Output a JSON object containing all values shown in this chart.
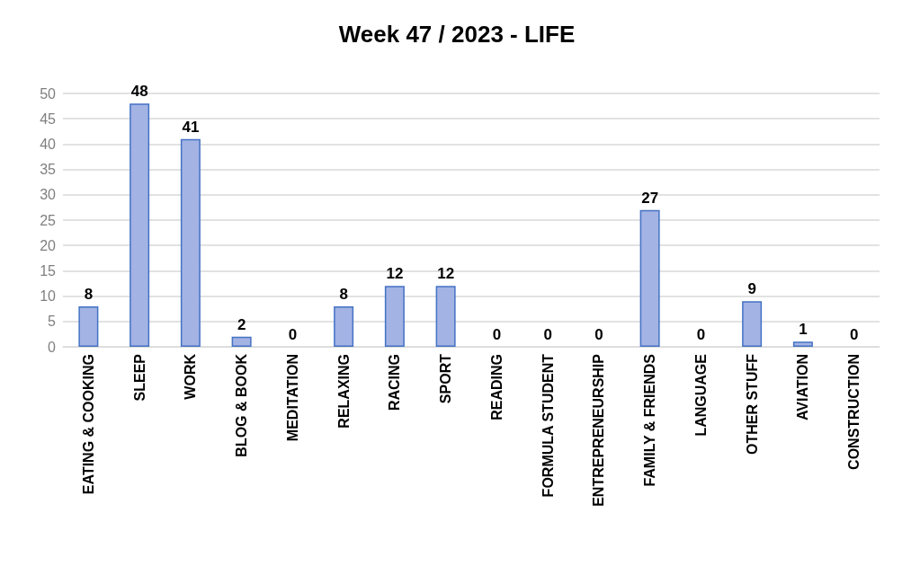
{
  "chart_data": {
    "type": "bar",
    "title": "Week 47 / 2023 - LIFE",
    "categories": [
      "EATING & COOKING",
      "SLEEP",
      "WORK",
      "BLOG & BOOK",
      "MEDITATION",
      "RELAXING",
      "RACING",
      "SPORT",
      "READING",
      "FORMULA STUDENT",
      "ENTREPRENEURSHIP",
      "FAMILY & FRIENDS",
      "LANGUAGE",
      "OTHER STUFF",
      "AVIATION",
      "CONSTRUCTION"
    ],
    "values": [
      8,
      48,
      41,
      2,
      0,
      8,
      12,
      12,
      0,
      0,
      0,
      27,
      0,
      9,
      1,
      0
    ],
    "color": "#a3b3e4",
    "ylim": [
      0,
      50
    ],
    "yticks": [
      0,
      5,
      10,
      15,
      20,
      25,
      30,
      35,
      40,
      45,
      50
    ],
    "grid": "y",
    "data_labels": true
  }
}
